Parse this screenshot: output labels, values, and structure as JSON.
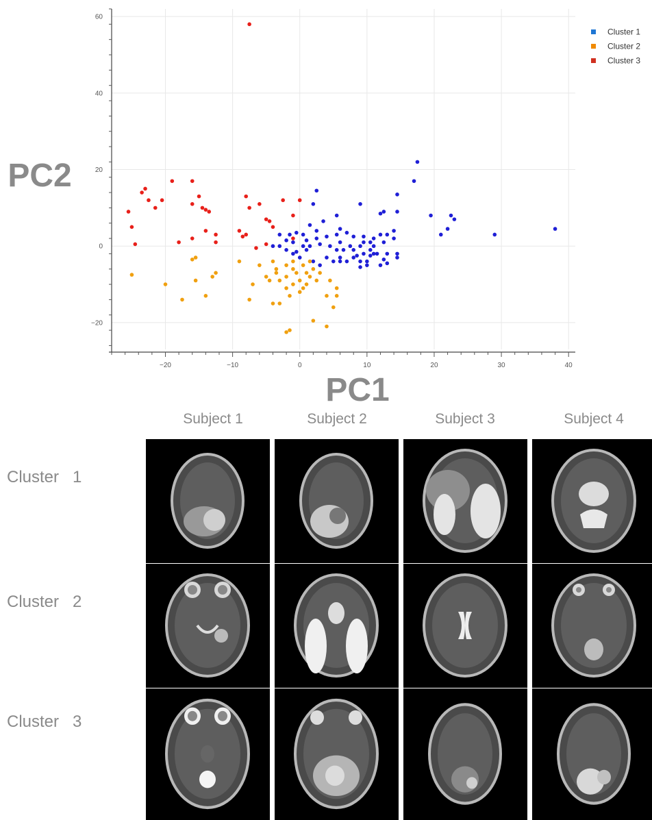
{
  "chart_data": {
    "type": "scatter",
    "xlabel": "PC1",
    "ylabel": "PC2",
    "xlim": [
      -28,
      41
    ],
    "ylim": [
      -27,
      62
    ],
    "xticks": [
      -20,
      -10,
      0,
      10,
      20,
      30,
      40
    ],
    "yticks": [
      -20,
      0,
      20,
      40,
      60
    ],
    "grid": true,
    "legend_position": "top-right",
    "series": [
      {
        "name": "Cluster 1",
        "color": "#1f1fd6",
        "legend_color": "#1f77d4",
        "points": [
          [
            17.5,
            22
          ],
          [
            17,
            17
          ],
          [
            14.5,
            13.5
          ],
          [
            9,
            11
          ],
          [
            2.5,
            14.5
          ],
          [
            2,
            11
          ],
          [
            5.5,
            8
          ],
          [
            3.5,
            6.5
          ],
          [
            12.5,
            9
          ],
          [
            12,
            8.5
          ],
          [
            14.5,
            9
          ],
          [
            19.5,
            8
          ],
          [
            22.5,
            8
          ],
          [
            23,
            7
          ],
          [
            22,
            4.5
          ],
          [
            21,
            3
          ],
          [
            29,
            3
          ],
          [
            38,
            4.5
          ],
          [
            1.5,
            5.5
          ],
          [
            2.5,
            4
          ],
          [
            -0.5,
            3.5
          ],
          [
            -1.5,
            3
          ],
          [
            0.5,
            3
          ],
          [
            -3,
            3
          ],
          [
            -2,
            1.5
          ],
          [
            -1,
            1
          ],
          [
            1,
            1.5
          ],
          [
            2.5,
            2
          ],
          [
            4,
            2.5
          ],
          [
            5.5,
            3
          ],
          [
            6,
            4.5
          ],
          [
            7,
            3.5
          ],
          [
            8,
            2.5
          ],
          [
            9.5,
            2.5
          ],
          [
            11,
            2
          ],
          [
            12,
            3
          ],
          [
            13,
            3
          ],
          [
            14,
            4
          ],
          [
            10.5,
            1
          ],
          [
            9.5,
            1
          ],
          [
            11,
            0
          ],
          [
            12.5,
            1
          ],
          [
            14,
            2
          ],
          [
            6,
            1
          ],
          [
            7.5,
            0
          ],
          [
            9,
            0
          ],
          [
            10.5,
            -1
          ],
          [
            11,
            -2
          ],
          [
            13,
            -2
          ],
          [
            14.5,
            -2
          ],
          [
            -4,
            0
          ],
          [
            -3,
            0
          ],
          [
            0.5,
            0
          ],
          [
            1.5,
            0
          ],
          [
            3,
            0.5
          ],
          [
            4.5,
            0
          ],
          [
            5.5,
            -1
          ],
          [
            6.5,
            -1
          ],
          [
            8,
            -1
          ],
          [
            9.5,
            -2
          ],
          [
            10.5,
            -2.5
          ],
          [
            12.5,
            -3.5
          ],
          [
            13,
            -4.5
          ],
          [
            14.5,
            -3
          ],
          [
            9,
            -4
          ],
          [
            10,
            -4
          ],
          [
            8,
            -3
          ],
          [
            7,
            -4
          ],
          [
            6,
            -3
          ],
          [
            5,
            -4
          ],
          [
            4,
            -3
          ],
          [
            3,
            -5
          ],
          [
            2,
            -4
          ],
          [
            0,
            -3
          ],
          [
            -1,
            -2
          ],
          [
            -2,
            -1
          ],
          [
            1,
            -1
          ],
          [
            -0.5,
            -1.5
          ],
          [
            10,
            -5
          ],
          [
            9,
            -5.5
          ],
          [
            11.5,
            -2
          ],
          [
            12,
            -5
          ],
          [
            8.5,
            -2.5
          ],
          [
            6,
            -4
          ]
        ]
      },
      {
        "name": "Cluster 2",
        "color": "#f0a010",
        "legend_color": "#f08a00",
        "points": [
          [
            -25,
            -7.5
          ],
          [
            -20,
            -10
          ],
          [
            -16,
            -3.5
          ],
          [
            -15.5,
            -3
          ],
          [
            -15.5,
            -9
          ],
          [
            -14,
            -13
          ],
          [
            -17.5,
            -14
          ],
          [
            -13,
            -8
          ],
          [
            -12.5,
            -7
          ],
          [
            -9,
            -4
          ],
          [
            -7.5,
            -14
          ],
          [
            -6,
            -5
          ],
          [
            -5,
            -8
          ],
          [
            -7,
            -10
          ],
          [
            -4,
            -4
          ],
          [
            -4,
            -15
          ],
          [
            -3.5,
            -6
          ],
          [
            -3,
            -9
          ],
          [
            -3,
            -15
          ],
          [
            -2,
            -5
          ],
          [
            -2,
            -8
          ],
          [
            -2,
            -11
          ],
          [
            -1.5,
            -13
          ],
          [
            -1,
            -4
          ],
          [
            -1,
            -6
          ],
          [
            -1,
            -10
          ],
          [
            -0.5,
            -7
          ],
          [
            0,
            -9
          ],
          [
            0,
            -12
          ],
          [
            0.5,
            -5
          ],
          [
            0.5,
            -11
          ],
          [
            1,
            -7
          ],
          [
            1,
            -10
          ],
          [
            1.5,
            -4
          ],
          [
            1.5,
            -8
          ],
          [
            2,
            -6
          ],
          [
            2.5,
            -9
          ],
          [
            3,
            -7
          ],
          [
            4,
            -13
          ],
          [
            4.5,
            -9
          ],
          [
            5,
            -16
          ],
          [
            5.5,
            -11
          ],
          [
            5.5,
            -13
          ],
          [
            4,
            -21
          ],
          [
            2,
            -19.5
          ],
          [
            -2,
            -22.5
          ],
          [
            -1.5,
            -22
          ],
          [
            -3.5,
            -7
          ],
          [
            -4.5,
            -9
          ]
        ]
      },
      {
        "name": "Cluster 3",
        "color": "#e8201a",
        "legend_color": "#d03020",
        "points": [
          [
            -7.5,
            58
          ],
          [
            -23,
            15
          ],
          [
            -23.5,
            14
          ],
          [
            -22.5,
            12
          ],
          [
            -19,
            17
          ],
          [
            -20.5,
            12
          ],
          [
            -21.5,
            10
          ],
          [
            -16,
            17
          ],
          [
            -15,
            13
          ],
          [
            -16,
            11
          ],
          [
            -14.5,
            10
          ],
          [
            -14,
            9.5
          ],
          [
            -13.5,
            9
          ],
          [
            -25.5,
            9
          ],
          [
            -25,
            5
          ],
          [
            -24.5,
            0.5
          ],
          [
            -18,
            1
          ],
          [
            -16,
            2
          ],
          [
            -14,
            4
          ],
          [
            -12.5,
            3
          ],
          [
            -12.5,
            1
          ],
          [
            -9,
            4
          ],
          [
            -8,
            3
          ],
          [
            -8.5,
            2.5
          ],
          [
            -8,
            13
          ],
          [
            -7.5,
            10
          ],
          [
            -6,
            11
          ],
          [
            -5,
            7
          ],
          [
            -4.5,
            6.5
          ],
          [
            -4,
            5
          ],
          [
            -5,
            0.5
          ],
          [
            -6.5,
            -0.5
          ],
          [
            -2.5,
            12
          ],
          [
            0,
            12
          ],
          [
            -1,
            8
          ],
          [
            -1,
            2
          ]
        ]
      }
    ]
  },
  "image_grid": {
    "column_headers": [
      "Subject 1",
      "Subject 2",
      "Subject 3",
      "Subject 4"
    ],
    "row_labels": [
      "Cluster   1",
      "Cluster   2",
      "Cluster   3"
    ]
  }
}
